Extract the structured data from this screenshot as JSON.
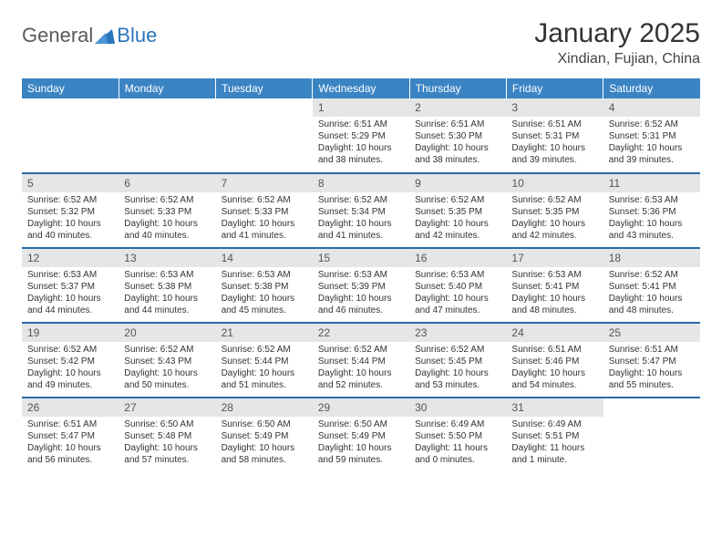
{
  "logo": {
    "part1": "General",
    "part2": "Blue"
  },
  "title": "January 2025",
  "location": "Xindian, Fujian, China",
  "colors": {
    "header_bg": "#3b84c4",
    "header_text": "#ffffff",
    "daynum_bg": "#e4e6e8",
    "row_border": "#2a6ba8",
    "logo_gray": "#5a5a5a",
    "logo_blue": "#2a75bb"
  },
  "day_names": [
    "Sunday",
    "Monday",
    "Tuesday",
    "Wednesday",
    "Thursday",
    "Friday",
    "Saturday"
  ],
  "weeks": [
    [
      {
        "n": "",
        "sr": "",
        "ss": "",
        "dl": "",
        "empty": true
      },
      {
        "n": "",
        "sr": "",
        "ss": "",
        "dl": "",
        "empty": true
      },
      {
        "n": "",
        "sr": "",
        "ss": "",
        "dl": "",
        "empty": true
      },
      {
        "n": "1",
        "sr": "Sunrise: 6:51 AM",
        "ss": "Sunset: 5:29 PM",
        "dl": "Daylight: 10 hours and 38 minutes."
      },
      {
        "n": "2",
        "sr": "Sunrise: 6:51 AM",
        "ss": "Sunset: 5:30 PM",
        "dl": "Daylight: 10 hours and 38 minutes."
      },
      {
        "n": "3",
        "sr": "Sunrise: 6:51 AM",
        "ss": "Sunset: 5:31 PM",
        "dl": "Daylight: 10 hours and 39 minutes."
      },
      {
        "n": "4",
        "sr": "Sunrise: 6:52 AM",
        "ss": "Sunset: 5:31 PM",
        "dl": "Daylight: 10 hours and 39 minutes."
      }
    ],
    [
      {
        "n": "5",
        "sr": "Sunrise: 6:52 AM",
        "ss": "Sunset: 5:32 PM",
        "dl": "Daylight: 10 hours and 40 minutes."
      },
      {
        "n": "6",
        "sr": "Sunrise: 6:52 AM",
        "ss": "Sunset: 5:33 PM",
        "dl": "Daylight: 10 hours and 40 minutes."
      },
      {
        "n": "7",
        "sr": "Sunrise: 6:52 AM",
        "ss": "Sunset: 5:33 PM",
        "dl": "Daylight: 10 hours and 41 minutes."
      },
      {
        "n": "8",
        "sr": "Sunrise: 6:52 AM",
        "ss": "Sunset: 5:34 PM",
        "dl": "Daylight: 10 hours and 41 minutes."
      },
      {
        "n": "9",
        "sr": "Sunrise: 6:52 AM",
        "ss": "Sunset: 5:35 PM",
        "dl": "Daylight: 10 hours and 42 minutes."
      },
      {
        "n": "10",
        "sr": "Sunrise: 6:52 AM",
        "ss": "Sunset: 5:35 PM",
        "dl": "Daylight: 10 hours and 42 minutes."
      },
      {
        "n": "11",
        "sr": "Sunrise: 6:53 AM",
        "ss": "Sunset: 5:36 PM",
        "dl": "Daylight: 10 hours and 43 minutes."
      }
    ],
    [
      {
        "n": "12",
        "sr": "Sunrise: 6:53 AM",
        "ss": "Sunset: 5:37 PM",
        "dl": "Daylight: 10 hours and 44 minutes."
      },
      {
        "n": "13",
        "sr": "Sunrise: 6:53 AM",
        "ss": "Sunset: 5:38 PM",
        "dl": "Daylight: 10 hours and 44 minutes."
      },
      {
        "n": "14",
        "sr": "Sunrise: 6:53 AM",
        "ss": "Sunset: 5:38 PM",
        "dl": "Daylight: 10 hours and 45 minutes."
      },
      {
        "n": "15",
        "sr": "Sunrise: 6:53 AM",
        "ss": "Sunset: 5:39 PM",
        "dl": "Daylight: 10 hours and 46 minutes."
      },
      {
        "n": "16",
        "sr": "Sunrise: 6:53 AM",
        "ss": "Sunset: 5:40 PM",
        "dl": "Daylight: 10 hours and 47 minutes."
      },
      {
        "n": "17",
        "sr": "Sunrise: 6:53 AM",
        "ss": "Sunset: 5:41 PM",
        "dl": "Daylight: 10 hours and 48 minutes."
      },
      {
        "n": "18",
        "sr": "Sunrise: 6:52 AM",
        "ss": "Sunset: 5:41 PM",
        "dl": "Daylight: 10 hours and 48 minutes."
      }
    ],
    [
      {
        "n": "19",
        "sr": "Sunrise: 6:52 AM",
        "ss": "Sunset: 5:42 PM",
        "dl": "Daylight: 10 hours and 49 minutes."
      },
      {
        "n": "20",
        "sr": "Sunrise: 6:52 AM",
        "ss": "Sunset: 5:43 PM",
        "dl": "Daylight: 10 hours and 50 minutes."
      },
      {
        "n": "21",
        "sr": "Sunrise: 6:52 AM",
        "ss": "Sunset: 5:44 PM",
        "dl": "Daylight: 10 hours and 51 minutes."
      },
      {
        "n": "22",
        "sr": "Sunrise: 6:52 AM",
        "ss": "Sunset: 5:44 PM",
        "dl": "Daylight: 10 hours and 52 minutes."
      },
      {
        "n": "23",
        "sr": "Sunrise: 6:52 AM",
        "ss": "Sunset: 5:45 PM",
        "dl": "Daylight: 10 hours and 53 minutes."
      },
      {
        "n": "24",
        "sr": "Sunrise: 6:51 AM",
        "ss": "Sunset: 5:46 PM",
        "dl": "Daylight: 10 hours and 54 minutes."
      },
      {
        "n": "25",
        "sr": "Sunrise: 6:51 AM",
        "ss": "Sunset: 5:47 PM",
        "dl": "Daylight: 10 hours and 55 minutes."
      }
    ],
    [
      {
        "n": "26",
        "sr": "Sunrise: 6:51 AM",
        "ss": "Sunset: 5:47 PM",
        "dl": "Daylight: 10 hours and 56 minutes."
      },
      {
        "n": "27",
        "sr": "Sunrise: 6:50 AM",
        "ss": "Sunset: 5:48 PM",
        "dl": "Daylight: 10 hours and 57 minutes."
      },
      {
        "n": "28",
        "sr": "Sunrise: 6:50 AM",
        "ss": "Sunset: 5:49 PM",
        "dl": "Daylight: 10 hours and 58 minutes."
      },
      {
        "n": "29",
        "sr": "Sunrise: 6:50 AM",
        "ss": "Sunset: 5:49 PM",
        "dl": "Daylight: 10 hours and 59 minutes."
      },
      {
        "n": "30",
        "sr": "Sunrise: 6:49 AM",
        "ss": "Sunset: 5:50 PM",
        "dl": "Daylight: 11 hours and 0 minutes."
      },
      {
        "n": "31",
        "sr": "Sunrise: 6:49 AM",
        "ss": "Sunset: 5:51 PM",
        "dl": "Daylight: 11 hours and 1 minute."
      },
      {
        "n": "",
        "sr": "",
        "ss": "",
        "dl": "",
        "empty": true
      }
    ]
  ]
}
